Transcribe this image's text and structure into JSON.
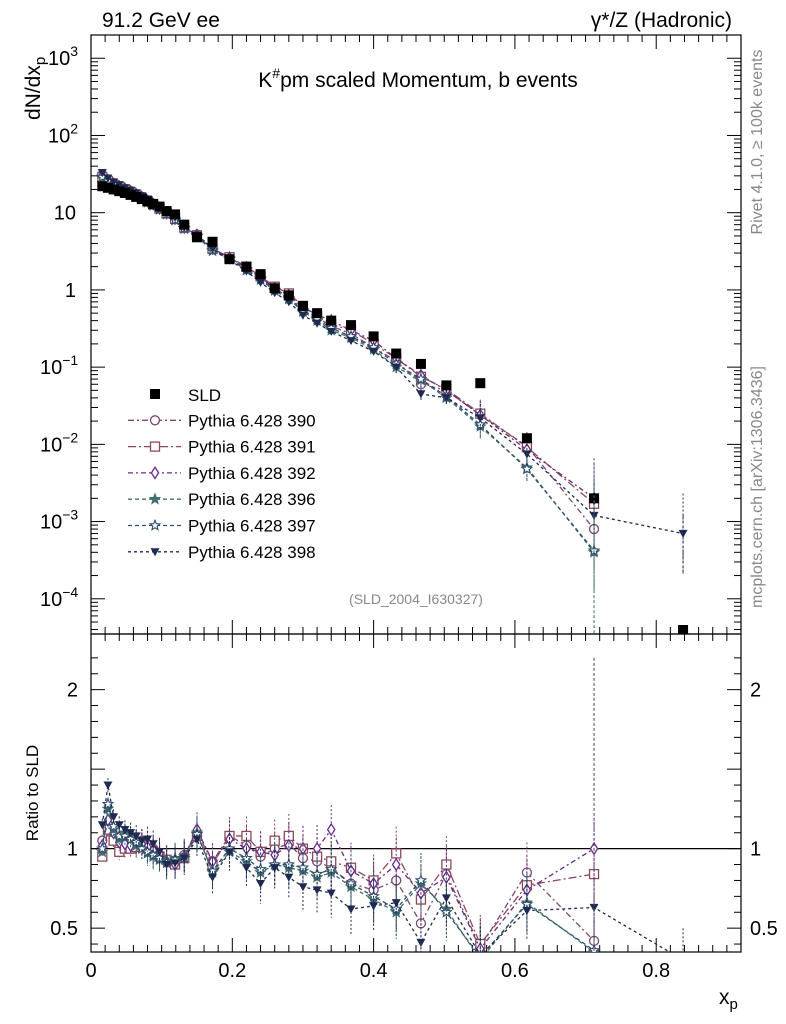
{
  "header": {
    "left": "91.2 GeV ee",
    "right": "γ*/Z (Hadronic)"
  },
  "side_labels": {
    "top": "Rivet 4.1.0, ≥ 100k events",
    "bottom": "mcplots.cern.ch [arXiv:1306.3436]"
  },
  "chart_data": {
    "type": "scatter",
    "title": "K#pm scaled Momentum, b events",
    "title_parts": {
      "pre": "K",
      "sup": "#",
      "post": "pm scaled Momentum, b events"
    },
    "watermark": "(SLD_2004_I630327)",
    "xlabel": "x",
    "xlabel_sub": "p",
    "ylabel": "dN/dx",
    "ylabel_sub": "p",
    "ratio_ylabel": "Ratio to SLD",
    "xlim": [
      0,
      0.92
    ],
    "ylim_log": [
      3.5e-05,
      2000
    ],
    "ratio_ylim": [
      0.35,
      2.35
    ],
    "x_ticks": [
      {
        "v": 0,
        "label": "0"
      },
      {
        "v": 0.2,
        "label": "0.2"
      },
      {
        "v": 0.4,
        "label": "0.4"
      },
      {
        "v": 0.6,
        "label": "0.6"
      },
      {
        "v": 0.8,
        "label": "0.8"
      }
    ],
    "y_ticks": [
      {
        "v": 1000,
        "base": "10",
        "exp": "3"
      },
      {
        "v": 100,
        "base": "10",
        "exp": "2"
      },
      {
        "v": 10,
        "base": "10",
        "exp": ""
      },
      {
        "v": 1,
        "base": "1",
        "exp": ""
      },
      {
        "v": 0.1,
        "base": "10",
        "exp": "−1"
      },
      {
        "v": 0.01,
        "base": "10",
        "exp": "−2"
      },
      {
        "v": 0.001,
        "base": "10",
        "exp": "−3"
      },
      {
        "v": 0.0001,
        "base": "10",
        "exp": "−4"
      }
    ],
    "ratio_ticks": [
      {
        "v": 0.5,
        "label": "0.5"
      },
      {
        "v": 1,
        "label": "1"
      },
      {
        "v": 2,
        "label": "2"
      }
    ],
    "x": [
      0.016,
      0.024,
      0.032,
      0.04,
      0.048,
      0.056,
      0.064,
      0.072,
      0.08,
      0.088,
      0.097,
      0.107,
      0.119,
      0.132,
      0.15,
      0.172,
      0.196,
      0.22,
      0.24,
      0.26,
      0.28,
      0.3,
      0.32,
      0.34,
      0.368,
      0.4,
      0.432,
      0.467,
      0.503,
      0.551,
      0.617,
      0.712,
      0.838
    ],
    "data": {
      "name": "SLD",
      "values": [
        22,
        21,
        20,
        19,
        18,
        17,
        16,
        15,
        14,
        13,
        12,
        10.5,
        9.5,
        7.0,
        4.8,
        4.2,
        2.5,
        2.0,
        1.6,
        1.05,
        0.85,
        0.62,
        0.5,
        0.4,
        0.35,
        0.25,
        0.15,
        0.11,
        0.058,
        0.062,
        0.012,
        0.002,
        3.3e-05
      ]
    },
    "series": [
      {
        "name": "Pythia 6.428 390",
        "color": "#7a4a72",
        "marker": "circle-open",
        "dash": "6,3,2,3",
        "values": [
          31,
          26.5,
          24,
          22,
          20.5,
          19,
          17.5,
          16,
          14.5,
          13,
          11.5,
          10,
          8.5,
          6.5,
          5.2,
          3.5,
          2.6,
          1.9,
          1.45,
          1.05,
          0.8,
          0.56,
          0.44,
          0.34,
          0.27,
          0.18,
          0.12,
          0.06,
          0.05,
          0.024,
          0.0095,
          0.0008,
          null
        ],
        "ratio": [
          1.05,
          1.15,
          1.08,
          1.02,
          1.05,
          1.04,
          1.03,
          1.05,
          1.03,
          1.0,
          0.96,
          0.93,
          0.92,
          0.96,
          1.1,
          0.92,
          1.08,
          1.02,
          0.95,
          1.0,
          1.03,
          0.94,
          0.92,
          0.88,
          0.78,
          0.74,
          0.8,
          0.53,
          0.84,
          0.38,
          0.85,
          0.42,
          null
        ]
      },
      {
        "name": "Pythia 6.428 391",
        "color": "#8a4a5a",
        "marker": "square-open",
        "dash": "8,3,2,3",
        "values": [
          29,
          25.5,
          23,
          21.5,
          20,
          18.5,
          17,
          15.5,
          14,
          12.8,
          11.3,
          9.8,
          8.3,
          6.4,
          5.1,
          3.4,
          2.65,
          2.0,
          1.5,
          1.1,
          0.9,
          0.62,
          0.46,
          0.36,
          0.3,
          0.2,
          0.13,
          0.075,
          0.052,
          0.025,
          0.0092,
          0.0017,
          null
        ],
        "ratio": [
          0.95,
          1.12,
          1.05,
          0.98,
          1.0,
          1.0,
          1.01,
          1.02,
          1.0,
          0.98,
          0.95,
          0.93,
          0.9,
          0.94,
          1.08,
          0.9,
          1.08,
          1.08,
          0.98,
          1.05,
          1.08,
          1.0,
          0.95,
          0.92,
          0.88,
          0.8,
          0.97,
          0.68,
          0.9,
          0.4,
          0.77,
          0.84,
          null
        ]
      },
      {
        "name": "Pythia 6.428 392",
        "color": "#6a2a8a",
        "marker": "diamond-open",
        "dash": "5,3,2,3",
        "values": [
          30,
          26,
          23.5,
          21.8,
          20.2,
          18.8,
          17.2,
          15.8,
          14.2,
          12.9,
          11.4,
          9.9,
          8.4,
          6.45,
          5.15,
          3.45,
          2.6,
          1.95,
          1.45,
          1.05,
          0.85,
          0.59,
          0.48,
          0.4,
          0.3,
          0.22,
          0.13,
          0.078,
          0.05,
          0.024,
          0.0085,
          0.002,
          null
        ],
        "ratio": [
          1.02,
          1.18,
          1.1,
          1.04,
          1.03,
          1.02,
          1.05,
          1.03,
          1.01,
          0.99,
          0.97,
          0.92,
          0.9,
          0.95,
          1.12,
          0.92,
          1.06,
          1.0,
          0.98,
          0.96,
          1.02,
          1.0,
          1.0,
          1.12,
          0.86,
          0.78,
          0.9,
          0.72,
          0.82,
          0.37,
          0.74,
          1.0,
          null
        ]
      },
      {
        "name": "Pythia 6.428 396",
        "color": "#3f6f6f",
        "marker": "star-filled",
        "dash": "4,3",
        "values": [
          28,
          25,
          22.5,
          21,
          19.5,
          18,
          16.5,
          15,
          13.6,
          12.4,
          11,
          9.5,
          8.0,
          6.2,
          4.9,
          3.2,
          2.5,
          1.8,
          1.35,
          0.98,
          0.76,
          0.52,
          0.4,
          0.3,
          0.24,
          0.17,
          0.1,
          0.068,
          0.04,
          0.017,
          0.005,
          0.0004,
          null
        ],
        "ratio": [
          0.98,
          1.25,
          1.12,
          1.06,
          1.1,
          1.08,
          1.02,
          1.0,
          0.97,
          0.95,
          0.93,
          0.92,
          0.94,
          0.95,
          1.1,
          0.85,
          0.98,
          0.92,
          0.85,
          0.9,
          0.88,
          0.86,
          0.82,
          0.85,
          0.76,
          0.68,
          0.6,
          0.78,
          0.62,
          0.3,
          0.66,
          0.35,
          null
        ]
      },
      {
        "name": "Pythia 6.428 397",
        "color": "#2f4f6a",
        "marker": "star-open",
        "dash": "4,3",
        "values": [
          29,
          25.8,
          23.2,
          21.5,
          20,
          18.5,
          17,
          15.3,
          13.9,
          12.6,
          11.2,
          9.6,
          8.1,
          6.3,
          5.0,
          3.3,
          2.55,
          1.85,
          1.4,
          1.0,
          0.78,
          0.54,
          0.42,
          0.32,
          0.25,
          0.18,
          0.11,
          0.07,
          0.042,
          0.018,
          0.0048,
          0.00042,
          null
        ],
        "ratio": [
          1.0,
          1.28,
          1.14,
          1.08,
          1.08,
          1.06,
          1.04,
          1.0,
          0.98,
          0.96,
          0.94,
          0.91,
          0.93,
          0.94,
          1.09,
          0.86,
          1.0,
          0.94,
          0.87,
          0.9,
          0.9,
          0.88,
          0.84,
          0.87,
          0.78,
          0.7,
          0.62,
          0.8,
          0.6,
          0.32,
          0.65,
          0.36,
          null
        ]
      },
      {
        "name": "Pythia 6.428 398",
        "color": "#1f2a50",
        "marker": "triangle-down-filled",
        "dash": "3,3",
        "values": [
          33,
          28,
          25,
          23,
          21,
          19.5,
          18,
          16.5,
          15,
          13.5,
          12,
          10.3,
          8.7,
          6.6,
          5.1,
          3.4,
          2.45,
          1.75,
          1.25,
          0.92,
          0.7,
          0.47,
          0.37,
          0.29,
          0.22,
          0.16,
          0.1,
          0.045,
          0.04,
          0.022,
          0.0075,
          0.0012,
          0.0007
        ],
        "ratio": [
          1.15,
          1.4,
          1.2,
          1.15,
          1.12,
          1.1,
          1.08,
          1.05,
          1.06,
          1.03,
          0.98,
          0.9,
          0.91,
          0.94,
          1.06,
          0.82,
          0.98,
          0.88,
          0.78,
          0.88,
          0.82,
          0.76,
          0.74,
          0.72,
          0.62,
          0.64,
          0.66,
          0.41,
          0.69,
          0.33,
          0.61,
          0.63,
          0.3
        ]
      }
    ]
  }
}
